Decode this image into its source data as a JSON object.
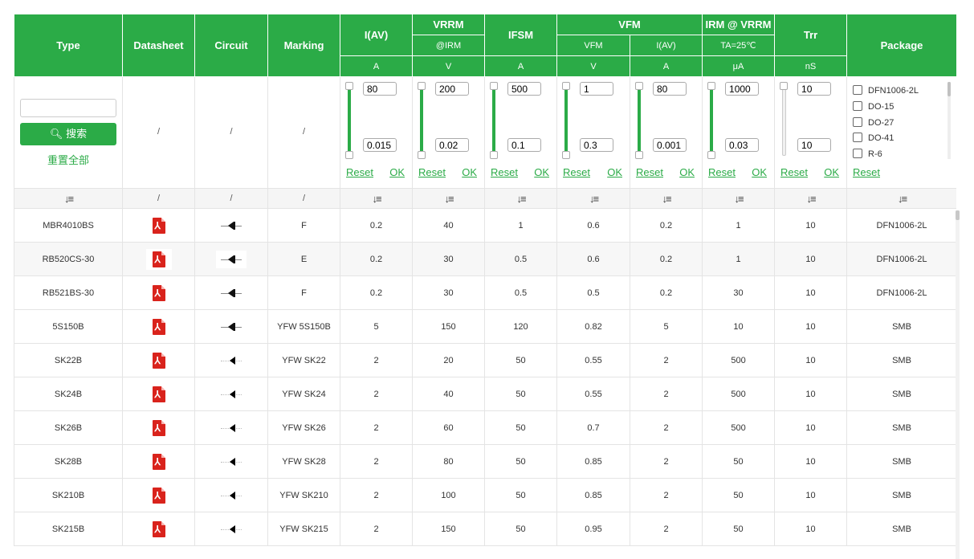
{
  "columns": {
    "type": "Type",
    "datasheet": "Datasheet",
    "circuit": "Circuit",
    "marking": "Marking",
    "iav": "I(AV)",
    "iav_unit": "A",
    "vrrm": "VRRM",
    "vrrm_sub": "@IRM",
    "vrrm_unit": "V",
    "ifsm": "IFSM",
    "ifsm_unit": "A",
    "vfm": "VFM",
    "vfm_sub1": "VFM",
    "vfm_unit1": "V",
    "vfm_sub2": "I(AV)",
    "vfm_unit2": "A",
    "irm": "IRM @ VRRM",
    "irm_sub": "TA=25℃",
    "irm_unit": "μA",
    "trr": "Trr",
    "trr_unit": "nS",
    "package": "Package"
  },
  "search": {
    "button_label": "搜索",
    "reset_all": "重置全部",
    "value": ""
  },
  "filters": {
    "slash": "/",
    "iav": {
      "max": "80",
      "min": "0.015"
    },
    "vrrm": {
      "max": "200",
      "min": "0.02"
    },
    "ifsm": {
      "max": "500",
      "min": "0.1"
    },
    "vfm": {
      "max": "1",
      "min": "0.3"
    },
    "vfm_iav": {
      "max": "80",
      "min": "0.001"
    },
    "irm": {
      "max": "1000",
      "min": "0.03"
    },
    "trr": {
      "max": "10",
      "min": "10"
    },
    "reset_label": "Reset",
    "ok_label": "OK",
    "packages": [
      "DFN1006-2L",
      "DO-15",
      "DO-27",
      "DO-41",
      "R-6"
    ]
  },
  "sort_row": {
    "slash": "/"
  },
  "rows": [
    {
      "type": "MBR4010BS",
      "marking": "F",
      "iav": "0.2",
      "vrrm": "40",
      "ifsm": "1",
      "vfm": "0.6",
      "vfm_iav": "0.2",
      "irm": "1",
      "trr": "10",
      "package": "DFN1006-2L"
    },
    {
      "type": "RB520CS-30",
      "marking": "E",
      "iav": "0.2",
      "vrrm": "30",
      "ifsm": "0.5",
      "vfm": "0.6",
      "vfm_iav": "0.2",
      "irm": "1",
      "trr": "10",
      "package": "DFN1006-2L"
    },
    {
      "type": "RB521BS-30",
      "marking": "F",
      "iav": "0.2",
      "vrrm": "30",
      "ifsm": "0.5",
      "vfm": "0.5",
      "vfm_iav": "0.2",
      "irm": "30",
      "trr": "10",
      "package": "DFN1006-2L"
    },
    {
      "type": "5S150B",
      "marking": "YFW 5S150B",
      "iav": "5",
      "vrrm": "150",
      "ifsm": "120",
      "vfm": "0.82",
      "vfm_iav": "5",
      "irm": "10",
      "trr": "10",
      "package": "SMB"
    },
    {
      "type": "SK22B",
      "marking": "YFW SK22",
      "iav": "2",
      "vrrm": "20",
      "ifsm": "50",
      "vfm": "0.55",
      "vfm_iav": "2",
      "irm": "500",
      "trr": "10",
      "package": "SMB"
    },
    {
      "type": "SK24B",
      "marking": "YFW SK24",
      "iav": "2",
      "vrrm": "40",
      "ifsm": "50",
      "vfm": "0.55",
      "vfm_iav": "2",
      "irm": "500",
      "trr": "10",
      "package": "SMB"
    },
    {
      "type": "SK26B",
      "marking": "YFW SK26",
      "iav": "2",
      "vrrm": "60",
      "ifsm": "50",
      "vfm": "0.7",
      "vfm_iav": "2",
      "irm": "500",
      "trr": "10",
      "package": "SMB"
    },
    {
      "type": "SK28B",
      "marking": "YFW SK28",
      "iav": "2",
      "vrrm": "80",
      "ifsm": "50",
      "vfm": "0.85",
      "vfm_iav": "2",
      "irm": "50",
      "trr": "10",
      "package": "SMB"
    },
    {
      "type": "SK210B",
      "marking": "YFW SK210",
      "iav": "2",
      "vrrm": "100",
      "ifsm": "50",
      "vfm": "0.85",
      "vfm_iav": "2",
      "irm": "50",
      "trr": "10",
      "package": "SMB"
    },
    {
      "type": "SK215B",
      "marking": "YFW SK215",
      "iav": "2",
      "vrrm": "150",
      "ifsm": "50",
      "vfm": "0.95",
      "vfm_iav": "2",
      "irm": "50",
      "trr": "10",
      "package": "SMB"
    }
  ],
  "colors": {
    "accent": "#2bab47",
    "pdf": "#d9231c"
  }
}
